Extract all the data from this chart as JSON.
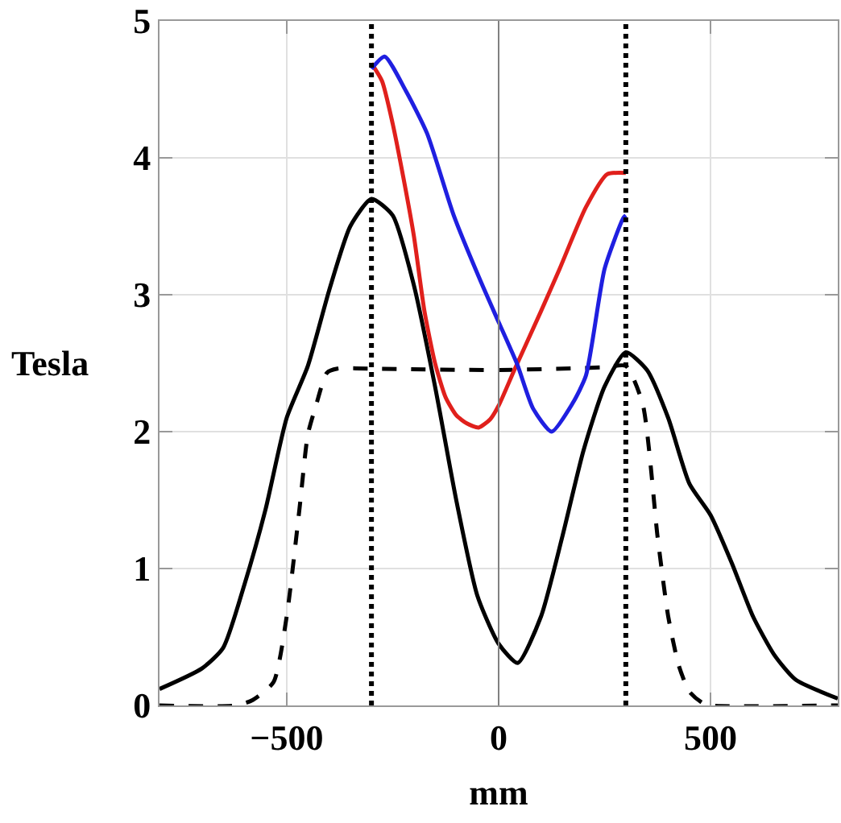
{
  "chart_data": {
    "type": "line",
    "xlabel": "mm",
    "ylabel": "Tesla",
    "xlim": [
      -800,
      800
    ],
    "ylim": [
      0,
      5
    ],
    "xticks": [
      -500,
      0,
      500
    ],
    "yticks": [
      0,
      1,
      2,
      3,
      4,
      5
    ],
    "grid": true,
    "marker": "none",
    "series": [
      {
        "color": "#000000",
        "line_style": "solid",
        "x": [
          -800,
          -700,
          -650,
          -600,
          -550,
          -500,
          -450,
          -400,
          -350,
          -300,
          -250,
          -200,
          -150,
          -100,
          -50,
          0,
          45,
          100,
          150,
          200,
          250,
          300,
          350,
          400,
          450,
          500,
          550,
          600,
          650,
          700,
          800
        ],
        "values": [
          0.12,
          0.27,
          0.42,
          0.88,
          1.43,
          2.1,
          2.48,
          3.03,
          3.5,
          3.7,
          3.58,
          3.07,
          2.33,
          1.5,
          0.8,
          0.45,
          0.31,
          0.65,
          1.23,
          1.86,
          2.33,
          2.58,
          2.45,
          2.1,
          1.62,
          1.39,
          1.04,
          0.65,
          0.37,
          0.19,
          0.05
        ]
      },
      {
        "color": "#000000",
        "line_style": "dashed",
        "x": [
          -800,
          -620,
          -580,
          -531,
          -500,
          -470,
          -450,
          -430,
          -405,
          -380,
          -300,
          0,
          250,
          300,
          340,
          375,
          400,
          425,
          450,
          480,
          500,
          800
        ],
        "values": [
          0,
          0,
          0.04,
          0.17,
          0.65,
          1.43,
          1.98,
          2.2,
          2.43,
          2.46,
          2.46,
          2.45,
          2.47,
          2.48,
          2.2,
          1.23,
          0.65,
          0.29,
          0.1,
          0.02,
          0,
          0
        ]
      },
      {
        "color": "#e0201c",
        "line_style": "solid",
        "x": [
          -300,
          -275,
          -250,
          -225,
          -200,
          -175,
          -150,
          -125,
          -100,
          -75,
          -47,
          -20,
          0,
          37,
          100,
          144,
          206,
          256,
          300
        ],
        "values": [
          4.69,
          4.56,
          4.25,
          3.86,
          3.43,
          2.88,
          2.5,
          2.25,
          2.12,
          2.06,
          2.03,
          2.09,
          2.19,
          2.45,
          2.88,
          3.19,
          3.64,
          3.88,
          3.89
        ]
      },
      {
        "color": "#1f1fe0",
        "line_style": "solid",
        "x": [
          -300,
          -269,
          -219,
          -169,
          -106,
          -44,
          0,
          44,
          81,
          125,
          175,
          206,
          250,
          294,
          300
        ],
        "values": [
          4.65,
          4.74,
          4.49,
          4.18,
          3.58,
          3.11,
          2.8,
          2.49,
          2.17,
          2.0,
          2.21,
          2.41,
          3.19,
          3.56,
          3.58
        ]
      }
    ],
    "ref_lines": [
      {
        "axis": "x",
        "value": -300,
        "color": "#000000",
        "line_style": "dotted"
      },
      {
        "axis": "x",
        "value": 300,
        "color": "#000000",
        "line_style": "dotted"
      },
      {
        "axis": "x",
        "value": 0,
        "color": "#808080",
        "line_style": "solid"
      }
    ]
  }
}
